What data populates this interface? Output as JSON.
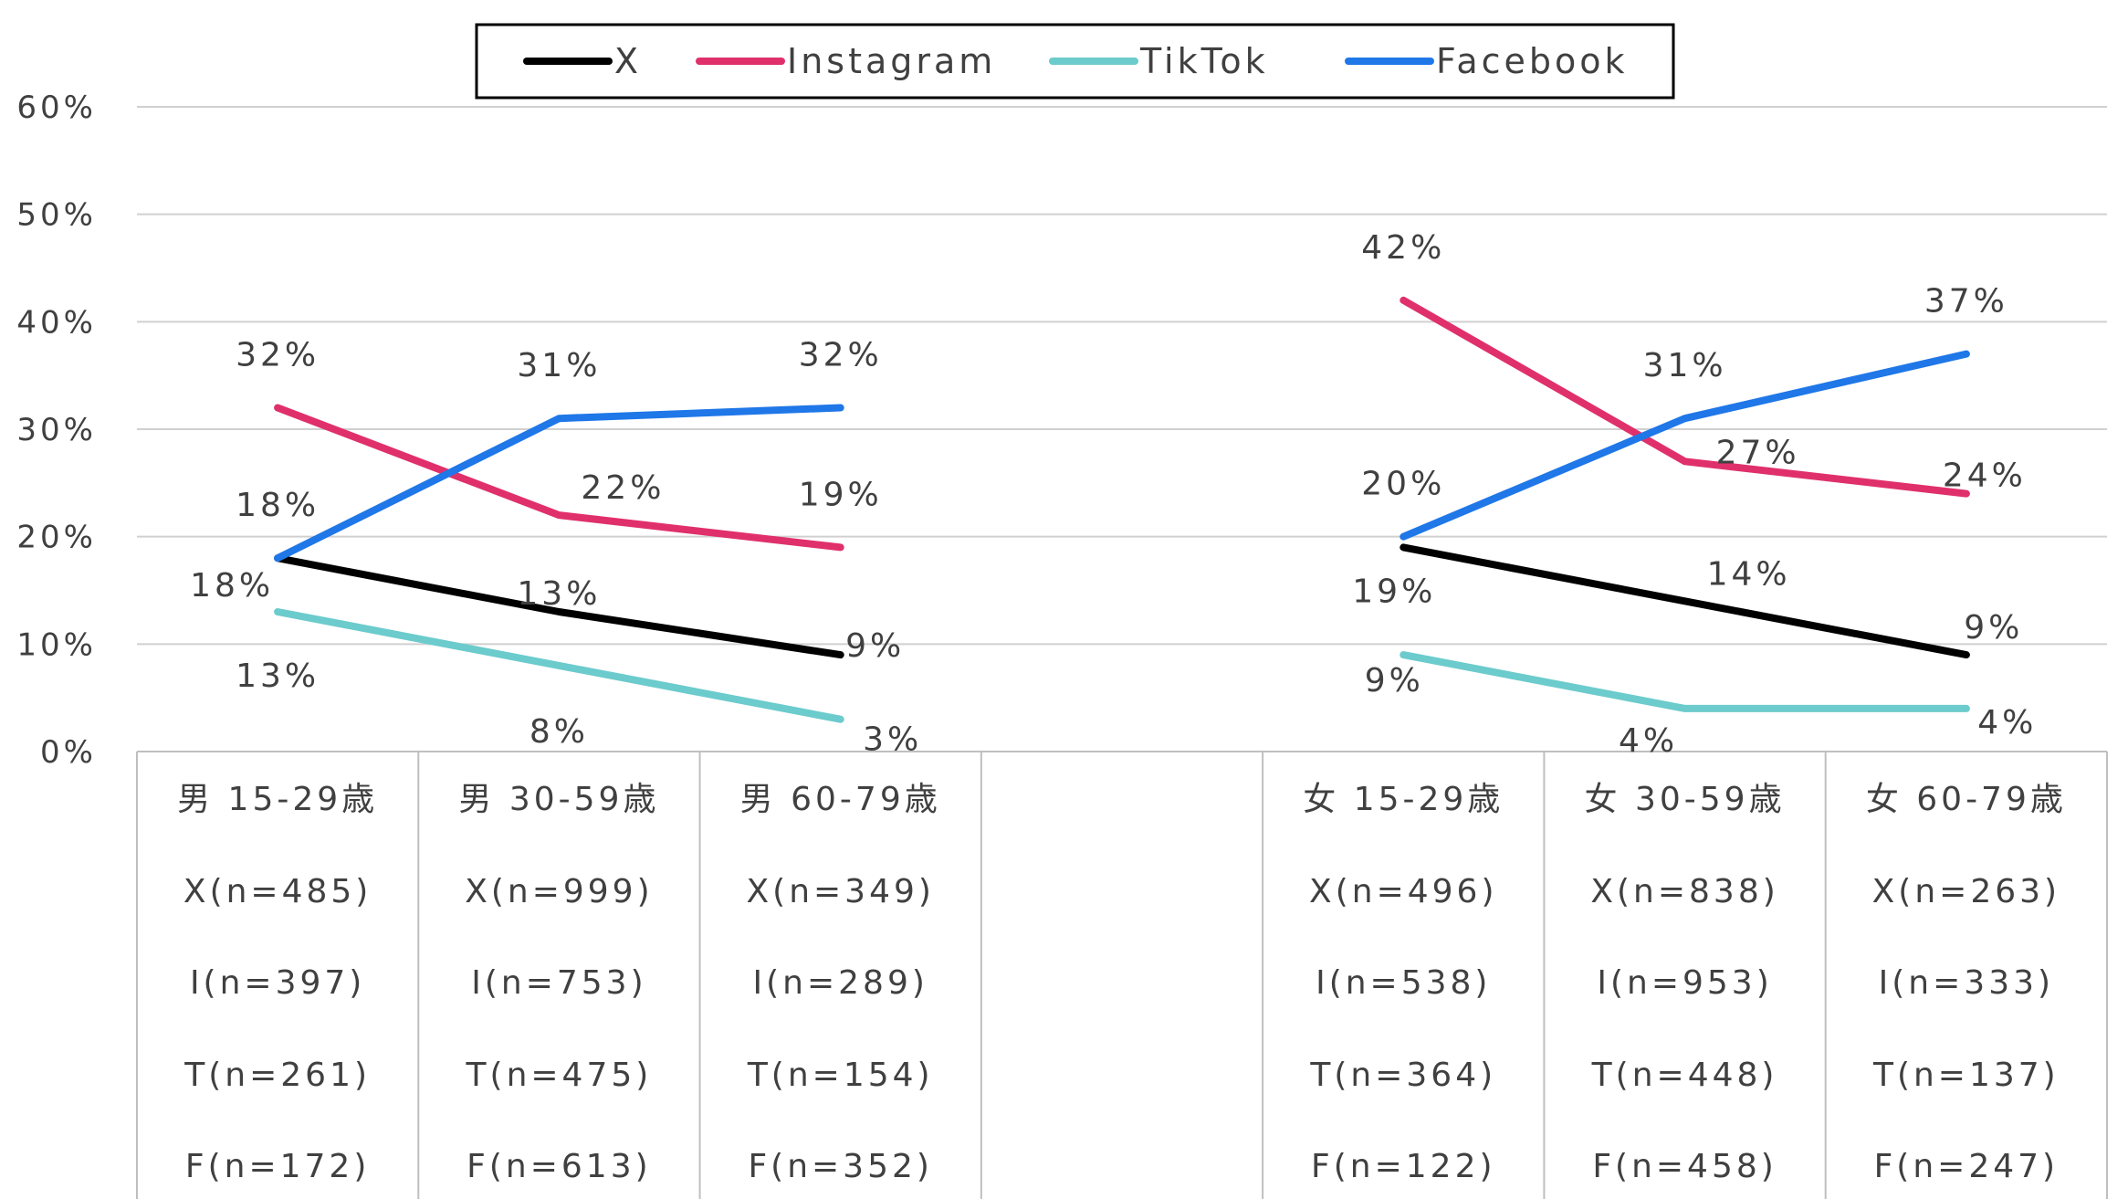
{
  "chart_data": {
    "type": "line",
    "yticks": [
      "0%",
      "10%",
      "20%",
      "30%",
      "40%",
      "50%",
      "60%"
    ],
    "ylim": [
      0,
      60
    ],
    "grid": true,
    "legend_position": "top",
    "categories": [
      {
        "lines": [
          "男 15-29歳",
          "X(n=485)",
          "I(n=397)",
          "T(n=261)",
          "F(n=172)"
        ]
      },
      {
        "lines": [
          "男 30-59歳",
          "X(n=999)",
          "I(n=753)",
          "T(n=475)",
          "F(n=613)"
        ]
      },
      {
        "lines": [
          "男 60-79歳",
          "X(n=349)",
          "I(n=289)",
          "T(n=154)",
          "F(n=352)"
        ]
      },
      {
        "lines": []
      },
      {
        "lines": [
          "女 15-29歳",
          "X(n=496)",
          "I(n=538)",
          "T(n=364)",
          "F(n=122)"
        ]
      },
      {
        "lines": [
          "女 30-59歳",
          "X(n=838)",
          "I(n=953)",
          "T(n=448)",
          "F(n=458)"
        ]
      },
      {
        "lines": [
          "女 60-79歳",
          "X(n=263)",
          "I(n=333)",
          "T(n=137)",
          "F(n=247)"
        ]
      }
    ],
    "series": [
      {
        "name": "X",
        "color": "#000000",
        "values": [
          18,
          13,
          9,
          null,
          19,
          14,
          9
        ],
        "labels": [
          "18%",
          "13%",
          "9%",
          null,
          "19%",
          "14%",
          "9%"
        ]
      },
      {
        "name": "Instagram",
        "color": "#e0306b",
        "values": [
          32,
          22,
          19,
          null,
          42,
          27,
          24
        ],
        "labels": [
          "32%",
          "22%",
          "19%",
          null,
          "42%",
          "27%",
          "24%"
        ]
      },
      {
        "name": "TikTok",
        "color": "#6ccbcc",
        "values": [
          13,
          8,
          3,
          null,
          9,
          4,
          4
        ],
        "labels": [
          "13%",
          "8%",
          "3%",
          null,
          "9%",
          "4%",
          "4%"
        ]
      },
      {
        "name": "Facebook",
        "color": "#1f77e8",
        "values": [
          18,
          31,
          32,
          null,
          20,
          31,
          37
        ],
        "labels": [
          "18%",
          "31%",
          "32%",
          null,
          "20%",
          "31%",
          "37%"
        ]
      }
    ]
  }
}
